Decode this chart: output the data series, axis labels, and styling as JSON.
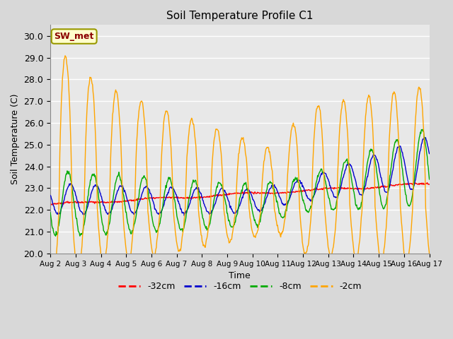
{
  "title": "Soil Temperature Profile C1",
  "xlabel": "Time",
  "ylabel": "Soil Temperature (C)",
  "ylim": [
    20.0,
    30.5
  ],
  "yticks": [
    20.0,
    21.0,
    22.0,
    23.0,
    24.0,
    25.0,
    26.0,
    27.0,
    28.0,
    29.0,
    30.0
  ],
  "fig_bg_color": "#d8d8d8",
  "plot_bg_color": "#e8e8e8",
  "grid_color": "#ffffff",
  "annotation_text": "SW_met",
  "annotation_box_color": "#ffffcc",
  "annotation_text_color": "#8b0000",
  "annotation_edge_color": "#999900",
  "series_colors": {
    "-32cm": "#ff0000",
    "-16cm": "#0000cd",
    "-8cm": "#00aa00",
    "-2cm": "#ffa500"
  },
  "legend_labels": [
    "-32cm",
    "-16cm",
    "-8cm",
    "-2cm"
  ],
  "legend_colors": [
    "#ff0000",
    "#0000cd",
    "#00aa00",
    "#ffa500"
  ],
  "n_days": 15,
  "pts_per_day": 48
}
